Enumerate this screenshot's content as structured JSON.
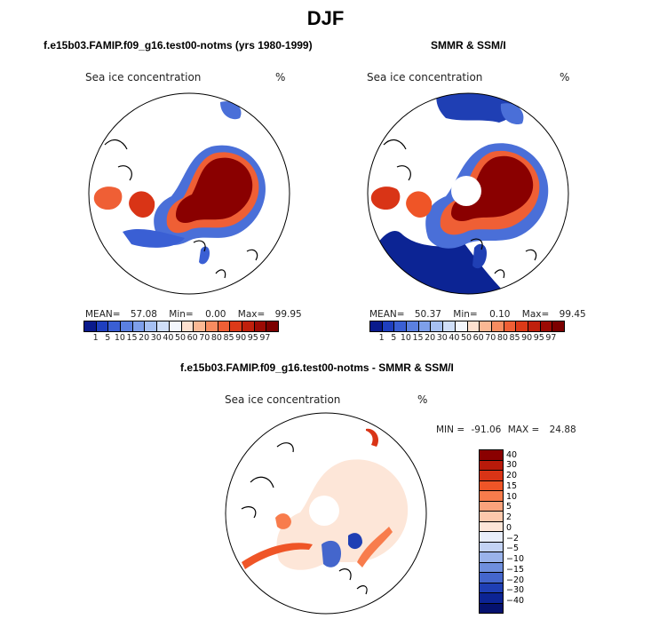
{
  "title": "DJF",
  "panel_left": {
    "heading": "f.e15b03.FAMIP.f09_g16.test00-notms (yrs 1980-1999)",
    "variable": "Sea ice concentration",
    "units": "%",
    "stats": {
      "mean_label": "MEAN=",
      "mean": "57.08",
      "min_label": "Min=",
      "min": "0.00",
      "max_label": "Max=",
      "max": "99.95"
    }
  },
  "panel_right": {
    "heading": "SMMR & SSM/I",
    "variable": "Sea ice concentration",
    "units": "%",
    "stats": {
      "mean_label": "MEAN=",
      "mean": "50.37",
      "min_label": "Min=",
      "min": "0.10",
      "max_label": "Max=",
      "max": "99.45"
    }
  },
  "concentration_scale": {
    "labels": [
      "1",
      "5",
      "10",
      "15",
      "20",
      "30",
      "40",
      "50",
      "60",
      "70",
      "80",
      "85",
      "90",
      "95",
      "97"
    ],
    "colors": [
      "#0a1a8c",
      "#1f3fbf",
      "#3a5fd4",
      "#5b80e0",
      "#7e9fea",
      "#a6c0f2",
      "#cfdef8",
      "#f3f6fc",
      "#fde0cf",
      "#fbb894",
      "#f78c60",
      "#ef5f35",
      "#dc3a18",
      "#c0200c",
      "#9c0a04",
      "#7c0000"
    ]
  },
  "panel_diff": {
    "heading": "f.e15b03.FAMIP.f09_g16.test00-notms - SMMR & SSM/I",
    "variable": "Sea ice concentration",
    "units": "%",
    "stats": {
      "min_label": "MIN =",
      "min": "-91.06",
      "max_label": "MAX =",
      "max": "24.88"
    }
  },
  "difference_scale": {
    "labels": [
      "40",
      "30",
      "20",
      "15",
      "10",
      "5",
      "2",
      "0",
      "−2",
      "−5",
      "−10",
      "−15",
      "−20",
      "−30",
      "−40"
    ],
    "colors": [
      "#8a0000",
      "#b81a0a",
      "#d93416",
      "#ef5527",
      "#f87c4c",
      "#fba37c",
      "#fdc8ac",
      "#fde6d8",
      "#e8eefb",
      "#c3d3f4",
      "#9ab3ea",
      "#6f8fdd",
      "#4466cc",
      "#1f3fb4",
      "#0c2494",
      "#05126e"
    ]
  }
}
